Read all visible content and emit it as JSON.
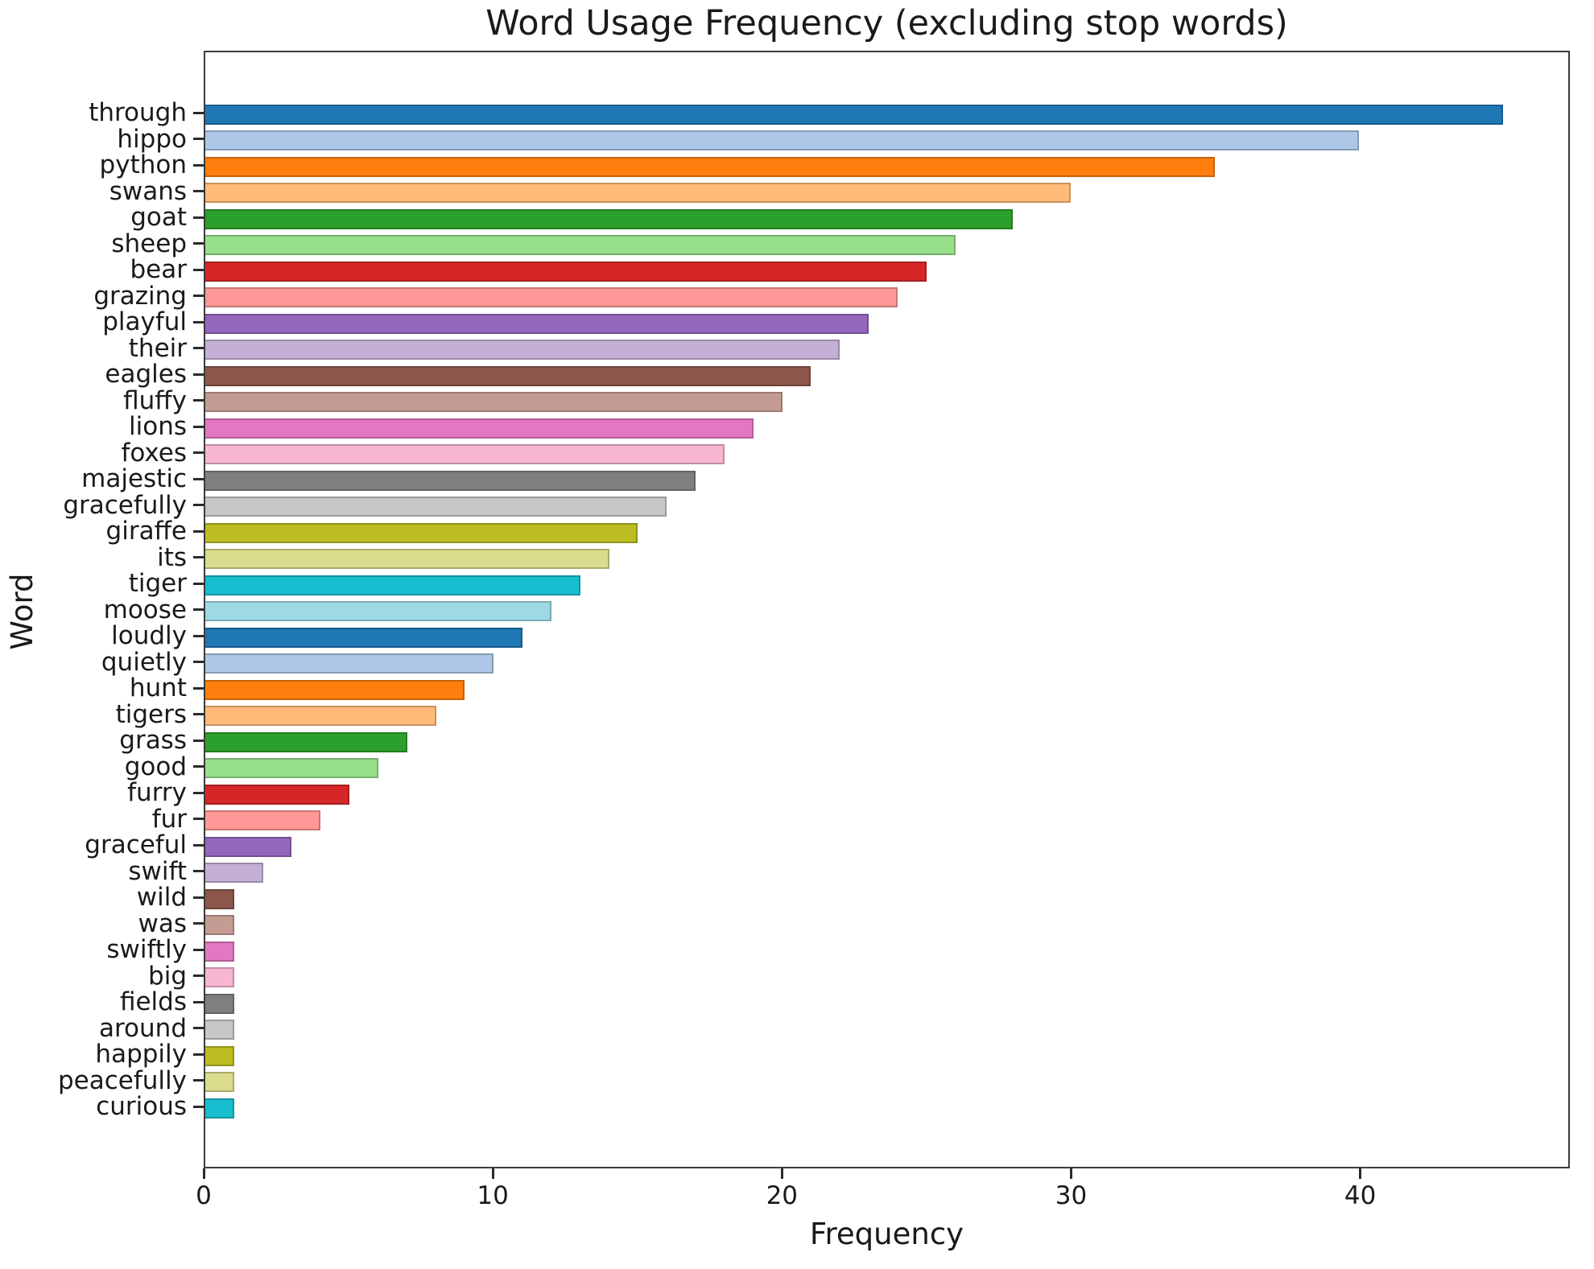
{
  "chart_data": {
    "type": "bar",
    "orientation": "horizontal",
    "title": "Word Usage Frequency (excluding stop words)",
    "xlabel": "Frequency",
    "ylabel": "Word",
    "xlim": [
      0,
      47.25
    ],
    "x_ticks": [
      0,
      10,
      20,
      30,
      40
    ],
    "grid": false,
    "legend_position": "none",
    "palette": [
      "#1f77b4",
      "#aec7e8",
      "#ff7f0e",
      "#ffbb78",
      "#2ca02c",
      "#98df8a",
      "#d62728",
      "#ff9896",
      "#9467bd",
      "#c5b0d5",
      "#8c564b",
      "#c49c94",
      "#e377c2",
      "#f7b6d2",
      "#7f7f7f",
      "#c7c7c7",
      "#bcbd22",
      "#dbdb8d",
      "#17becf",
      "#9edae5"
    ],
    "categories": [
      "through",
      "hippo",
      "python",
      "swans",
      "goat",
      "sheep",
      "bear",
      "grazing",
      "playful",
      "their",
      "eagles",
      "fluffy",
      "lions",
      "foxes",
      "majestic",
      "gracefully",
      "giraffe",
      "its",
      "tiger",
      "moose",
      "loudly",
      "quietly",
      "hunt",
      "tigers",
      "grass",
      "good",
      "furry",
      "fur",
      "graceful",
      "swift",
      "wild",
      "was",
      "swiftly",
      "big",
      "fields",
      "around",
      "happily",
      "peacefully",
      "curious"
    ],
    "values": [
      45,
      40,
      35,
      30,
      28,
      26,
      25,
      24,
      23,
      22,
      21,
      20,
      19,
      18,
      17,
      16,
      15,
      14,
      13,
      12,
      11,
      10,
      9,
      8,
      7,
      6,
      5,
      4,
      3,
      2,
      1,
      1,
      1,
      1,
      1,
      1,
      1,
      1,
      1
    ]
  }
}
